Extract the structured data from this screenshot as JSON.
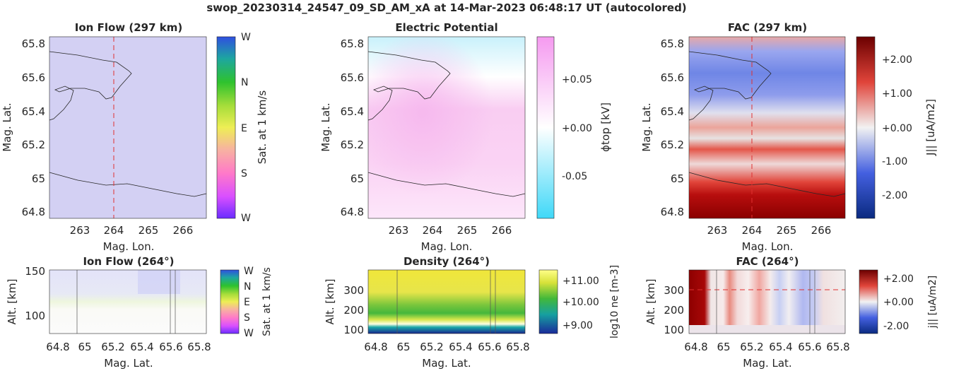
{
  "figure_title": "swop_20230314_24547_09_SD_AM_xA at 14-Mar-2023 06:48:17 UT (autocolored)",
  "colors": {
    "ion_flow_tint": "#d8d4f6",
    "potential_pink": "#f7c6f0",
    "potential_cyan": "#c9f1fb",
    "fac_red": "#8b0000",
    "fac_blue": "#4f6be0",
    "marker_red": "#e03030"
  },
  "chart_data": [
    {
      "id": "ion_flow_map",
      "type": "heatmap",
      "title": "Ion Flow (297 km)",
      "xlabel": "Mag. Lon.",
      "ylabel": "Mag. Lat.",
      "xticks": [
        "263",
        "264",
        "265",
        "266"
      ],
      "yticks": [
        "65.8",
        "65.6",
        "65.4",
        "65.2",
        "65",
        "64.8"
      ],
      "xlim": [
        262.2,
        266.7
      ],
      "ylim": [
        64.77,
        65.84
      ],
      "colorbar": {
        "label": "Sat. at 1 km/s",
        "ticks": [
          "W",
          "N",
          "E",
          "S",
          "W"
        ]
      },
      "marker_lon": 264
    },
    {
      "id": "potential_map",
      "type": "heatmap",
      "title": "Electric Potential",
      "xlabel": "Mag. Lon.",
      "ylabel": "Mag. Lat.",
      "xticks": [
        "263",
        "264",
        "265",
        "266"
      ],
      "yticks": [
        "65.8",
        "65.6",
        "65.4",
        "65.2",
        "65",
        "64.8"
      ],
      "xlim": [
        262.2,
        266.7
      ],
      "ylim": [
        64.77,
        65.84
      ],
      "colorbar": {
        "label": "ϕtop [kV]",
        "ticks": [
          "+0.05",
          "+0.00",
          "-0.05"
        ]
      }
    },
    {
      "id": "fac_map",
      "type": "heatmap",
      "title": "FAC (297 km)",
      "xlabel": "Mag. Lon.",
      "ylabel": "Mag. Lat.",
      "xticks": [
        "263",
        "264",
        "265",
        "266"
      ],
      "yticks": [
        "65.8",
        "65.6",
        "65.4",
        "65.2",
        "65",
        "64.8"
      ],
      "xlim": [
        262.2,
        266.7
      ],
      "ylim": [
        64.77,
        65.84
      ],
      "colorbar": {
        "label": "J|| [uA/m2]",
        "ticks": [
          "+2.00",
          "+1.00",
          "+0.00",
          "-1.00",
          "-2.00"
        ]
      },
      "marker_lon": 264
    },
    {
      "id": "ion_flow_profile",
      "type": "heatmap",
      "title": "Ion Flow (264°)",
      "xlabel": "Mag. Lat.",
      "ylabel": "Alt. [km]",
      "xticks": [
        "64.8",
        "65",
        "65.2",
        "65.4",
        "65.6",
        "65.8"
      ],
      "yticks": [
        "150",
        "100"
      ],
      "xlim": [
        64.77,
        65.88
      ],
      "ylim": [
        80,
        150
      ],
      "colorbar": {
        "label": "Sat. at 1 km/s",
        "ticks": [
          "W",
          "N",
          "E",
          "S",
          "W"
        ]
      }
    },
    {
      "id": "density_profile",
      "type": "heatmap",
      "title": "Density (264°)",
      "xlabel": "Mag. Lat.",
      "ylabel": "Alt. [km]",
      "xticks": [
        "64.8",
        "65",
        "65.2",
        "65.4",
        "65.6",
        "65.8"
      ],
      "yticks": [
        "300",
        "200",
        "100"
      ],
      "xlim": [
        64.77,
        65.88
      ],
      "ylim": [
        90,
        400
      ],
      "colorbar": {
        "label": "log10 ne [m-3]",
        "ticks": [
          "+11.00",
          "+10.00",
          "+9.00"
        ]
      }
    },
    {
      "id": "fac_profile",
      "type": "heatmap",
      "title": "FAC (264°)",
      "xlabel": "Mag. Lat.",
      "ylabel": "Alt. [km]",
      "xticks": [
        "64.8",
        "65",
        "65.2",
        "65.4",
        "65.6",
        "65.8"
      ],
      "yticks": [
        "300",
        "200",
        "100"
      ],
      "xlim": [
        64.77,
        65.88
      ],
      "ylim": [
        90,
        400
      ],
      "colorbar": {
        "label": "j|| [uA/m2]",
        "ticks": [
          "+2.00",
          "+0.00",
          "-2.00"
        ]
      },
      "marker_alt": 300
    }
  ]
}
